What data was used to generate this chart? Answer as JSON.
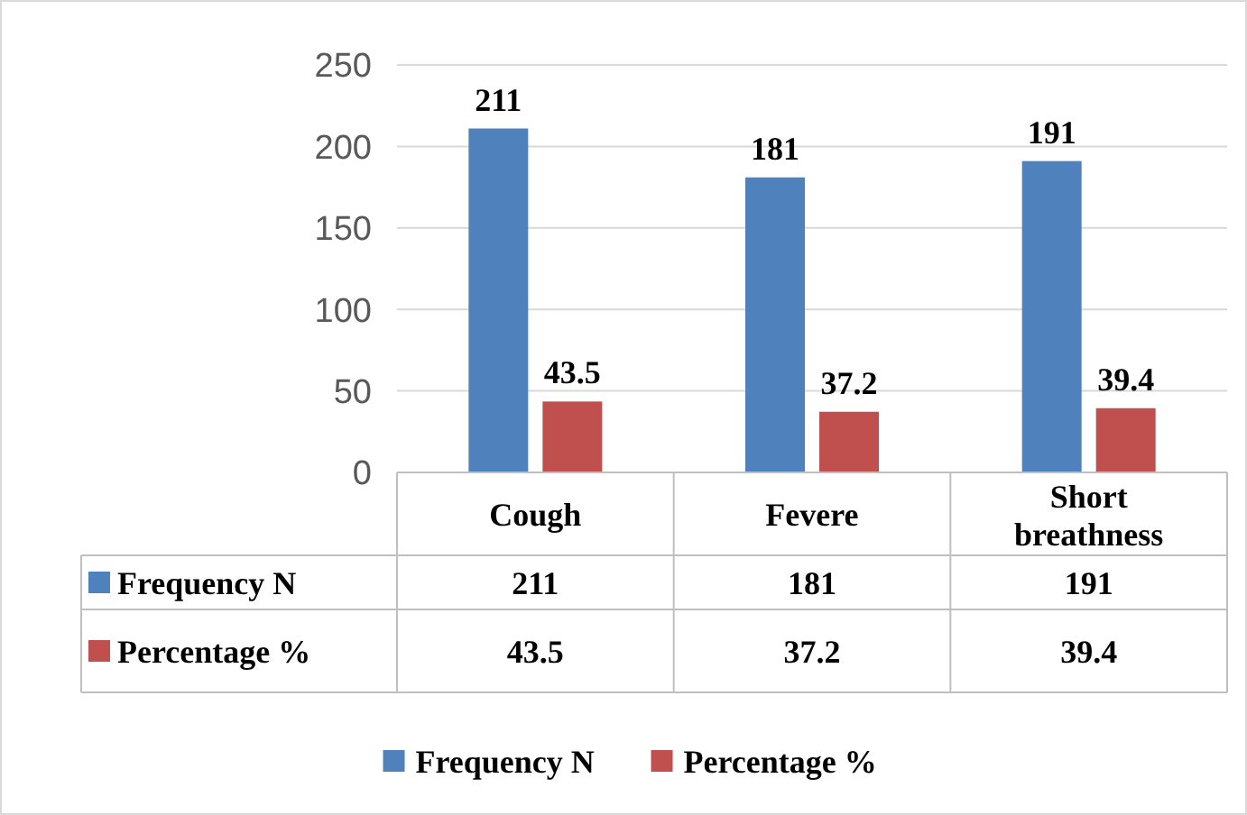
{
  "chart_data": {
    "type": "bar",
    "categories": [
      "Cough",
      "Fevere",
      "Short breathness"
    ],
    "series": [
      {
        "name": "Frequency N",
        "color": "#4f81bd",
        "values": [
          211,
          181,
          191
        ]
      },
      {
        "name": "Percentage %",
        "color": "#c0504d",
        "values": [
          43.5,
          37.2,
          39.4
        ]
      }
    ],
    "annotations": [
      "211",
      "181",
      "191",
      "43.5",
      "37.2",
      "39.4"
    ],
    "ylim": [
      0,
      250
    ],
    "yticks": [
      0,
      50,
      100,
      150,
      200,
      250
    ],
    "grid": "y",
    "data_labels": true,
    "legend": "bottom"
  }
}
